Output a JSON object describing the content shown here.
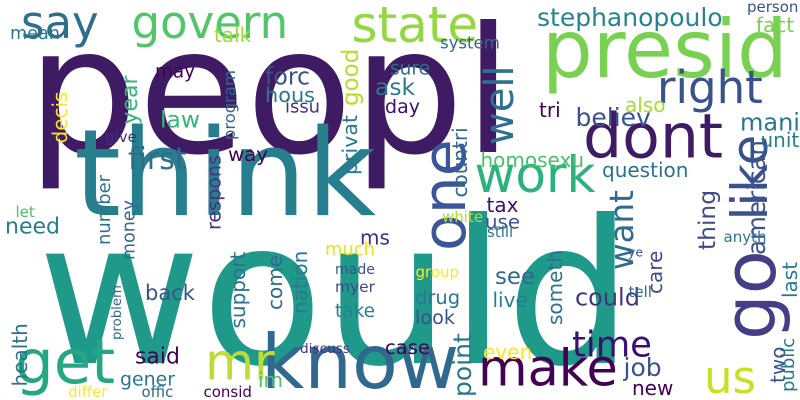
{
  "words": [
    {
      "text": "would",
      "color": "#1f9a8a",
      "vertical": false
    },
    {
      "text": "peopl",
      "color": "#3f1b63",
      "vertical": false
    },
    {
      "text": "think",
      "color": "#277f8e",
      "vertical": false
    },
    {
      "text": "presid",
      "color": "#78d151",
      "vertical": false
    },
    {
      "text": "dont",
      "color": "#3f1b63",
      "vertical": false
    },
    {
      "text": "one",
      "color": "#3b5597",
      "vertical": true
    },
    {
      "text": "know",
      "color": "#31688e",
      "vertical": false
    },
    {
      "text": "mr",
      "color": "#bfdc34",
      "vertical": false
    },
    {
      "text": "make",
      "color": "#440154",
      "vertical": false
    },
    {
      "text": "get",
      "color": "#26a784",
      "vertical": false
    },
    {
      "text": "say",
      "color": "#2e6f8e",
      "vertical": false
    },
    {
      "text": "govern",
      "color": "#52c569",
      "vertical": false
    },
    {
      "text": "state",
      "color": "#93d741",
      "vertical": false
    },
    {
      "text": "well",
      "color": "#2d718e",
      "vertical": true
    },
    {
      "text": "work",
      "color": "#2db27d",
      "vertical": false
    },
    {
      "text": "like",
      "color": "#3b518b",
      "vertical": true
    },
    {
      "text": "go",
      "color": "#433e85",
      "vertical": true
    },
    {
      "text": "us",
      "color": "#c8e020",
      "vertical": false
    },
    {
      "text": "right",
      "color": "#3a528b",
      "vertical": false
    },
    {
      "text": "time",
      "color": "#3b0f70",
      "vertical": false
    },
    {
      "text": "want",
      "color": "#2f6b8e",
      "vertical": true
    },
    {
      "text": "stephanopoulo",
      "color": "#26838f",
      "vertical": false
    },
    {
      "text": "person",
      "color": "#3b528b",
      "vertical": false
    },
    {
      "text": "fact",
      "color": "#7ad151",
      "vertical": false
    },
    {
      "text": "mean",
      "color": "#2a788e",
      "vertical": false
    },
    {
      "text": "talk",
      "color": "#a0da39",
      "vertical": false
    },
    {
      "text": "system",
      "color": "#31688e",
      "vertical": false
    },
    {
      "text": "sure",
      "color": "#2d708e",
      "vertical": false
    },
    {
      "text": "may",
      "color": "#440154",
      "vertical": false
    },
    {
      "text": "good",
      "color": "#b5de2b",
      "vertical": true
    },
    {
      "text": "forc",
      "color": "#3b528b",
      "vertical": false
    },
    {
      "text": "hous",
      "color": "#2a788e",
      "vertical": false
    },
    {
      "text": "issu",
      "color": "#46337e",
      "vertical": false
    },
    {
      "text": "ask",
      "color": "#287c8e",
      "vertical": false
    },
    {
      "text": "day",
      "color": "#3b0f70",
      "vertical": false
    },
    {
      "text": "year",
      "color": "#35b779",
      "vertical": true
    },
    {
      "text": "program",
      "color": "#31688e",
      "vertical": true
    },
    {
      "text": "privat",
      "color": "#2a788e",
      "vertical": true
    },
    {
      "text": "believ",
      "color": "#3b528b",
      "vertical": false
    },
    {
      "text": "also",
      "color": "#a8db34",
      "vertical": false
    },
    {
      "text": "tri",
      "color": "#440154",
      "vertical": false
    },
    {
      "text": "law",
      "color": "#35b779",
      "vertical": false
    },
    {
      "text": "mani",
      "color": "#2a788e",
      "vertical": false
    },
    {
      "text": "unit",
      "color": "#277f8e",
      "vertical": false
    },
    {
      "text": "decis",
      "color": "#fde725",
      "vertical": true
    },
    {
      "text": "give",
      "color": "#472d7b",
      "vertical": false
    },
    {
      "text": "first",
      "color": "#2f6b8e",
      "vertical": false
    },
    {
      "text": "way",
      "color": "#440154",
      "vertical": false
    },
    {
      "text": "countri",
      "color": "#31688e",
      "vertical": true
    },
    {
      "text": "homosexu",
      "color": "#4ac16d",
      "vertical": false
    },
    {
      "text": "question",
      "color": "#2d708e",
      "vertical": false
    },
    {
      "text": "american",
      "color": "#3b528b",
      "vertical": true
    },
    {
      "text": "respons",
      "color": "#46337e",
      "vertical": true
    },
    {
      "text": "number",
      "color": "#2c728e",
      "vertical": true
    },
    {
      "text": "tax",
      "color": "#3b0f70",
      "vertical": false
    },
    {
      "text": "use",
      "color": "#3b528b",
      "vertical": false
    },
    {
      "text": "thing",
      "color": "#3e4a89",
      "vertical": true
    },
    {
      "text": "let",
      "color": "#4ac16d",
      "vertical": false
    },
    {
      "text": "need",
      "color": "#277f8e",
      "vertical": false
    },
    {
      "text": "white",
      "color": "#addc30",
      "vertical": false
    },
    {
      "text": "still",
      "color": "#2a788e",
      "vertical": false
    },
    {
      "text": "money",
      "color": "#31688e",
      "vertical": true
    },
    {
      "text": "ms",
      "color": "#472d7b",
      "vertical": false
    },
    {
      "text": "much",
      "color": "#e5e419",
      "vertical": false
    },
    {
      "text": "made",
      "color": "#3b528b",
      "vertical": false
    },
    {
      "text": "myer",
      "color": "#3e4a89",
      "vertical": false
    },
    {
      "text": "take",
      "color": "#26828e",
      "vertical": false
    },
    {
      "text": "come",
      "color": "#31688e",
      "vertical": true
    },
    {
      "text": "nation",
      "color": "#2a788e",
      "vertical": true
    },
    {
      "text": "support",
      "color": "#2c728e",
      "vertical": true
    },
    {
      "text": "back",
      "color": "#3b528b",
      "vertical": false
    },
    {
      "text": "see",
      "color": "#31688e",
      "vertical": false
    },
    {
      "text": "drug",
      "color": "#2a788e",
      "vertical": false
    },
    {
      "text": "look",
      "color": "#3b528b",
      "vertical": false
    },
    {
      "text": "live",
      "color": "#277f8e",
      "vertical": false
    },
    {
      "text": "someth",
      "color": "#2c728e",
      "vertical": true
    },
    {
      "text": "could",
      "color": "#46337e",
      "vertical": false
    },
    {
      "text": "care",
      "color": "#3e4a89",
      "vertical": true
    },
    {
      "text": "ye",
      "color": "#3b528b",
      "vertical": false
    },
    {
      "text": "anyth",
      "color": "#2a788e",
      "vertical": false
    },
    {
      "text": "last",
      "color": "#2a788e",
      "vertical": true
    },
    {
      "text": "group",
      "color": "#fde725",
      "vertical": false
    },
    {
      "text": "tell",
      "color": "#31688e",
      "vertical": false
    },
    {
      "text": "problem",
      "color": "#31688e",
      "vertical": true
    },
    {
      "text": "health",
      "color": "#2c728e",
      "vertical": true
    },
    {
      "text": "said",
      "color": "#440154",
      "vertical": false
    },
    {
      "text": "gener",
      "color": "#2a788e",
      "vertical": false
    },
    {
      "text": "im",
      "color": "#4ac16d",
      "vertical": false
    },
    {
      "text": "discuss",
      "color": "#46337e",
      "vertical": false
    },
    {
      "text": "case",
      "color": "#440154",
      "vertical": false
    },
    {
      "text": "even",
      "color": "#fde725",
      "vertical": false
    },
    {
      "text": "point",
      "color": "#2a788e",
      "vertical": true
    },
    {
      "text": "job",
      "color": "#3b528b",
      "vertical": false
    },
    {
      "text": "new",
      "color": "#440154",
      "vertical": false
    },
    {
      "text": "two",
      "color": "#3b528b",
      "vertical": true
    },
    {
      "text": "public",
      "color": "#2a788e",
      "vertical": true
    },
    {
      "text": "differ",
      "color": "#fde725",
      "vertical": false
    },
    {
      "text": "offic",
      "color": "#31688e",
      "vertical": false
    },
    {
      "text": "consid",
      "color": "#440154",
      "vertical": false
    }
  ]
}
